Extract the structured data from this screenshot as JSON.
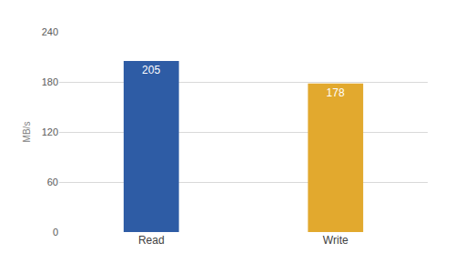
{
  "chart_data": {
    "type": "bar",
    "categories": [
      "Read",
      "Write"
    ],
    "values": [
      205,
      178
    ],
    "colors": [
      "#2e5ca5",
      "#e2a92e"
    ],
    "y_label": "MB/s",
    "ylim": [
      0,
      240
    ],
    "yticks": [
      0,
      60,
      120,
      180,
      240
    ],
    "grid": true,
    "data_labels": true
  }
}
